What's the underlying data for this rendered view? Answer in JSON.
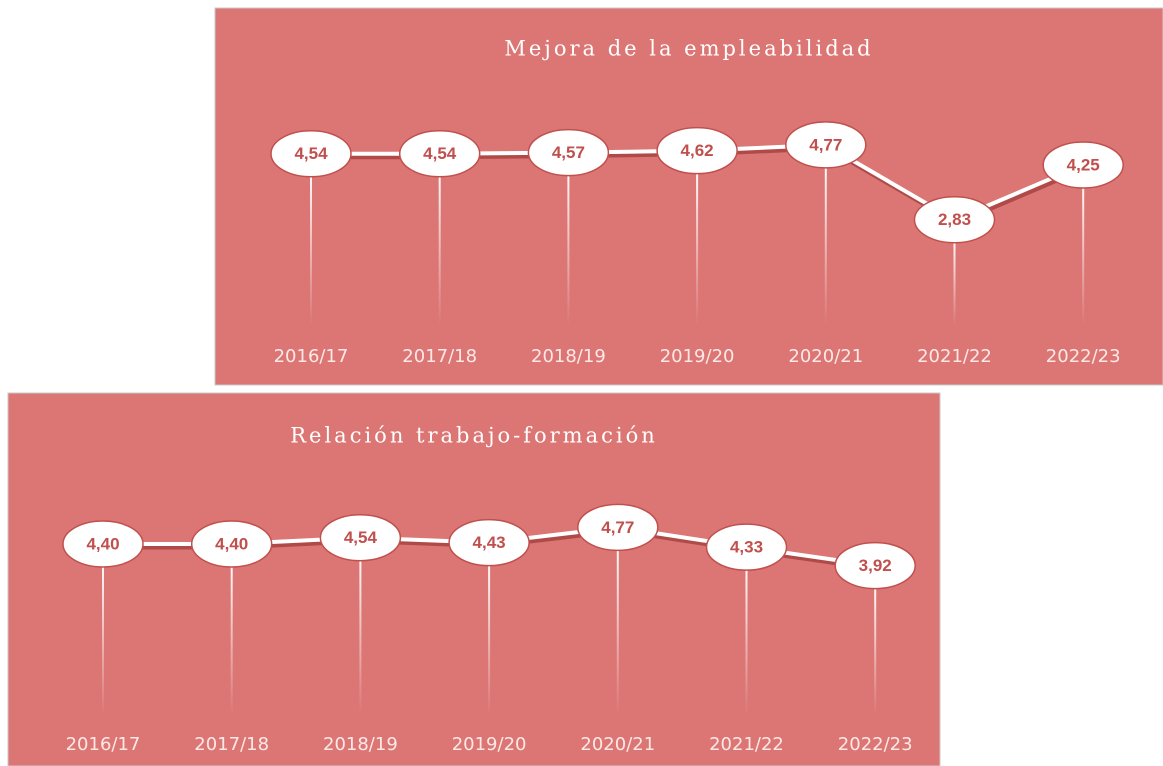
{
  "chart_data": [
    {
      "type": "line",
      "title": "Mejora de la empleabilidad",
      "categories": [
        "2016/17",
        "2017/18",
        "2018/19",
        "2019/20",
        "2020/21",
        "2021/22",
        "2022/23"
      ],
      "series": [
        {
          "name": null,
          "color": "#ffffff",
          "values": [
            4.54,
            4.54,
            4.57,
            4.62,
            4.77,
            2.83,
            4.25
          ],
          "value_labels": [
            "4,54",
            "4,54",
            "4,57",
            "4,62",
            "4,77",
            "2,83",
            "4,25"
          ]
        }
      ],
      "ylim": [
        0,
        5
      ]
    },
    {
      "type": "line",
      "title": "Relación trabajo-formación",
      "categories": [
        "2016/17",
        "2017/18",
        "2018/19",
        "2019/20",
        "2020/21",
        "2021/22",
        "2022/23"
      ],
      "series": [
        {
          "name": null,
          "color": "#ffffff",
          "values": [
            4.4,
            4.4,
            4.54,
            4.43,
            4.77,
            4.33,
            3.92
          ],
          "value_labels": [
            "4,40",
            "4,40",
            "4,54",
            "4,43",
            "4,77",
            "4,33",
            "3,92"
          ]
        }
      ],
      "ylim": [
        0,
        5
      ]
    }
  ]
}
